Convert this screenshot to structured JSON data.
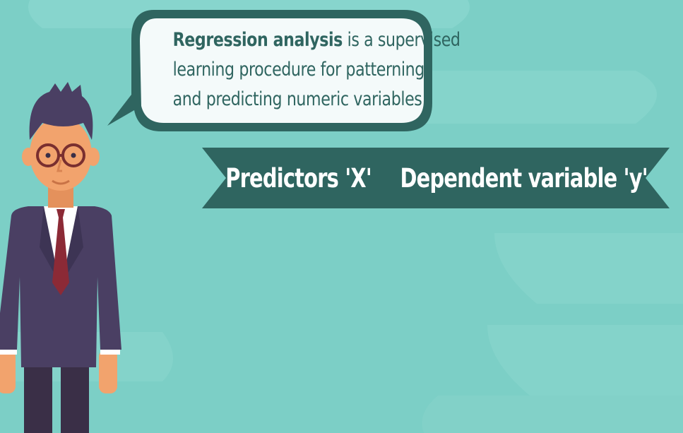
{
  "speech_bubble": {
    "line1_bold": "Regression analysis",
    "line1_rest": " is a supervised",
    "line2": "learning procedure for patterning",
    "line3": "and predicting numeric variables"
  },
  "banner": {
    "left_label": "Predictors 'X'",
    "arrow_icon": "arrow-right-icon",
    "right_label": "Dependent variable 'y'"
  },
  "colors": {
    "background": "#7ccfc6",
    "bubble_border": "#2f6560",
    "bubble_fill": "#f4fafa",
    "banner_fill": "#2f6560",
    "suit": "#4a3f63",
    "tie": "#8c2a36"
  }
}
